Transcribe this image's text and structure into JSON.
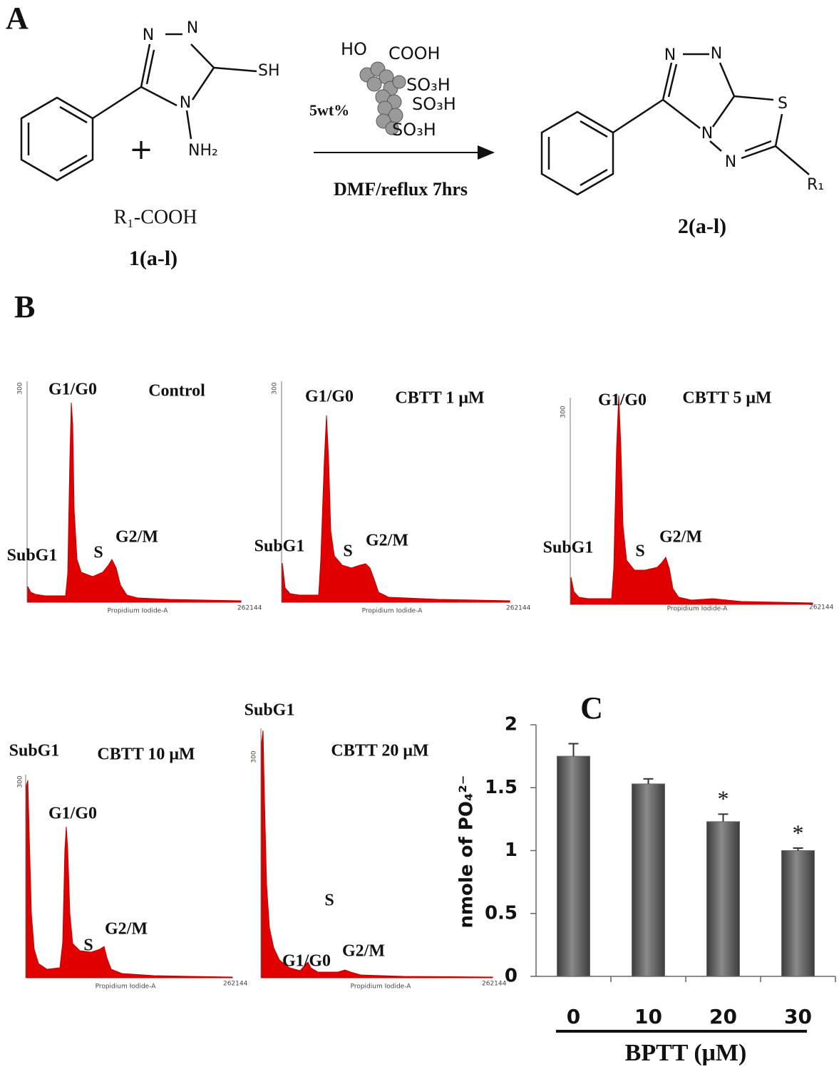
{
  "panel_a": {
    "label": "A",
    "reactant_atoms": [
      "N",
      "N",
      "N",
      "SH",
      "NH₂"
    ],
    "plus": "+",
    "acid": "R₁-COOH",
    "reactant_id": "1(a-l)",
    "catalyst": [
      "HO",
      "COOH",
      "SO₃H",
      "SO₃H",
      "SO₃H"
    ],
    "loading": "5wt%",
    "conditions": "DMF/reflux 7hrs",
    "product_atoms": [
      "N",
      "N",
      "N",
      "S",
      "N",
      "R₁"
    ],
    "product_id": "2(a-l)"
  },
  "panel_b": {
    "label": "B",
    "histograms": [
      {
        "title": "Control",
        "peaks": [
          "G1/G0",
          "SubG1",
          "S",
          "G2/M"
        ],
        "y_tick": "300",
        "x_label": "Propidium Iodide-A",
        "x_end": "262144"
      },
      {
        "title": "CBTT 1 μM",
        "peaks": [
          "G1/G0",
          "SubG1",
          "S",
          "G2/M"
        ],
        "y_tick": "300",
        "x_label": "Propidium Iodide-A",
        "x_end": "262144"
      },
      {
        "title": "CBTT 5 μM",
        "peaks": [
          "G1/G0",
          "SubG1",
          "S",
          "G2/M"
        ],
        "y_tick": "300",
        "x_label": "Propidium Iodide-A",
        "x_end": "262144"
      },
      {
        "title": "CBTT 10 μM",
        "peaks": [
          "G1/G0",
          "SubG1",
          "S",
          "G2/M"
        ],
        "y_tick": "300",
        "x_label": "Propidium Iodide-A",
        "x_end": "262144"
      },
      {
        "title": "CBTT 20 μM",
        "peaks": [
          "G1/G0",
          "SubG1",
          "S",
          "G2/M"
        ],
        "y_tick": "300",
        "x_label": "Propidium Iodide-A",
        "x_end": "262144"
      }
    ]
  },
  "chart_data": {
    "type": "bar",
    "label": "C",
    "categories": [
      "0",
      "10",
      "20",
      "30"
    ],
    "values": [
      1.75,
      1.53,
      1.23,
      1.0
    ],
    "errors": [
      0.1,
      0.04,
      0.06,
      0.02
    ],
    "color": "#6a6a6a",
    "x_label": "BPTT (μM)",
    "y_label": "nmole of PO₄²⁻",
    "ylim": [
      0,
      2
    ],
    "yticks": [
      0,
      0.5,
      1,
      1.5,
      2
    ],
    "annotations": [
      {
        "text": "*",
        "category": "20"
      },
      {
        "text": "*",
        "category": "30"
      }
    ]
  }
}
